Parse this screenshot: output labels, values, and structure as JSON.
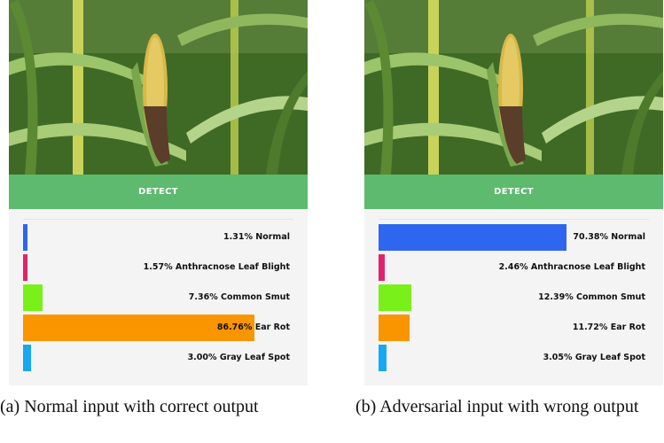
{
  "detect_label": "DETECT",
  "colors": {
    "detect_button": "#5dba6e",
    "results_bg": "#f4f4f4",
    "normal": "#2f66f0",
    "anthracnose": "#e0246b",
    "common_smut": "#7af01a",
    "ear_rot": "#fa9500",
    "gray_leaf_spot": "#16a8f2"
  },
  "panels": [
    {
      "caption": "(a) Normal input with correct output",
      "results": [
        {
          "label": "1.31% Normal",
          "value": 1.31,
          "color": "#2f66f0"
        },
        {
          "label": "1.57% Anthracnose Leaf Blight",
          "value": 1.57,
          "color": "#e0246b"
        },
        {
          "label": "7.36% Common Smut",
          "value": 7.36,
          "color": "#7af01a"
        },
        {
          "label": "86.76% Ear Rot",
          "value": 86.76,
          "color": "#fa9500"
        },
        {
          "label": "3.00% Gray Leaf Spot",
          "value": 3.0,
          "color": "#16a8f2"
        }
      ]
    },
    {
      "caption": "(b) Adversarial input with wrong output",
      "results": [
        {
          "label": "70.38% Normal",
          "value": 70.38,
          "color": "#2f66f0"
        },
        {
          "label": "2.46% Anthracnose Leaf Blight",
          "value": 2.46,
          "color": "#e0246b"
        },
        {
          "label": "12.39% Common Smut",
          "value": 12.39,
          "color": "#7af01a"
        },
        {
          "label": "11.72% Ear Rot",
          "value": 11.72,
          "color": "#fa9500"
        },
        {
          "label": "3.05% Gray Leaf Spot",
          "value": 3.05,
          "color": "#16a8f2"
        }
      ]
    }
  ]
}
